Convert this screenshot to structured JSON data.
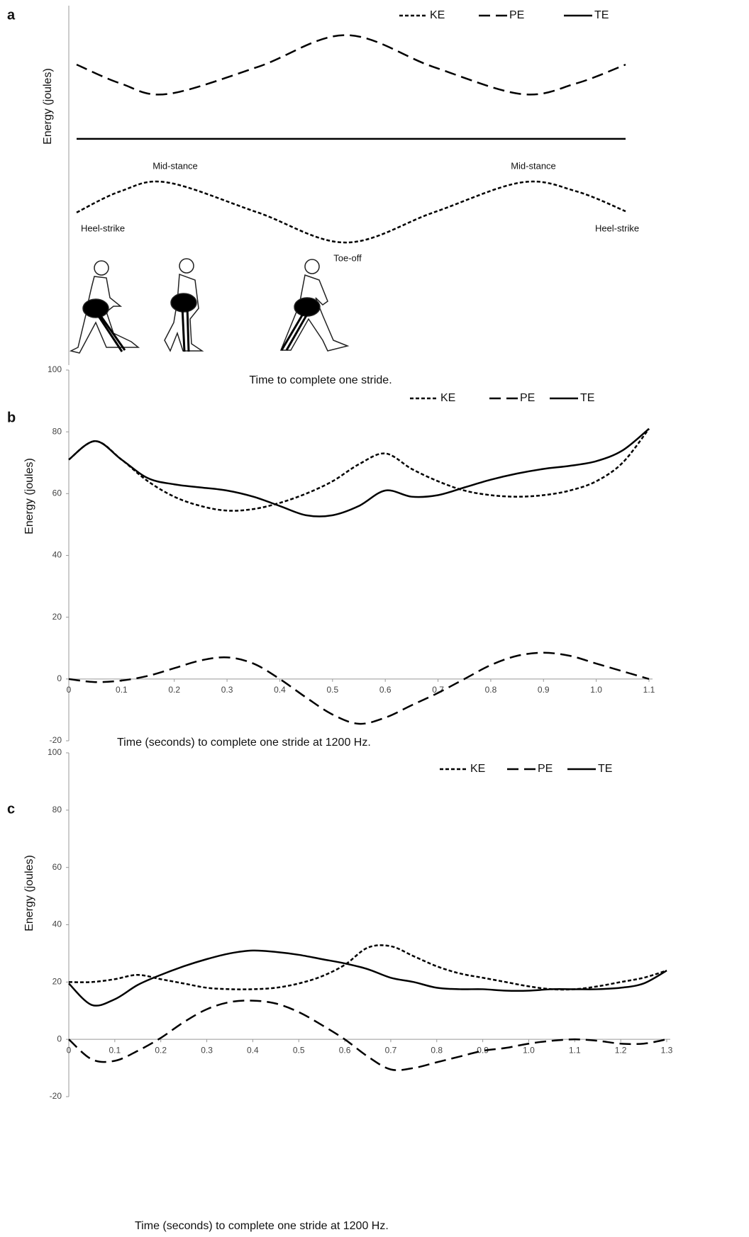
{
  "chart_data": [
    {
      "type": "line",
      "label": "a",
      "y_label": "Energy (joules)",
      "x_label": "Time to complete one stride.",
      "annotations": [
        "Mid-stance",
        "Mid-stance",
        "Heel-strike",
        "Heel-strike",
        "Toe-off"
      ],
      "xlim": [
        0,
        1
      ],
      "ylim": [
        0,
        6.1
      ],
      "x": [
        0,
        0.08,
        0.165,
        0.33,
        0.49,
        0.65,
        0.81,
        0.91,
        1
      ],
      "series": [
        {
          "name": "KE",
          "color": "#000000",
          "style": "dotted",
          "values": [
            2.59,
            2.95,
            3.1,
            2.59,
            2.08,
            2.59,
            3.1,
            2.95,
            2.61
          ]
        },
        {
          "name": "PE",
          "color": "#000000",
          "style": "dashed",
          "values": [
            5.1,
            4.78,
            4.6,
            5.06,
            5.6,
            5.06,
            4.6,
            4.78,
            5.1
          ]
        },
        {
          "name": "TE",
          "color": "#000000",
          "style": "solid",
          "values": [
            3.84,
            3.84,
            3.84,
            3.84,
            3.84,
            3.84,
            3.84,
            3.84,
            3.84
          ]
        }
      ]
    },
    {
      "type": "line",
      "label": "b",
      "y_label": "Energy (joules)",
      "x_label": "Time (seconds) to complete one stride at 1200 Hz.",
      "xlim": [
        0,
        1.1
      ],
      "ylim": [
        -20,
        100
      ],
      "xticks": [
        0,
        0.1,
        0.2,
        0.3,
        0.4,
        0.5,
        0.6,
        0.7,
        0.8,
        0.9,
        {
          "value": 1,
          "label": "1.0"
        },
        1.1
      ],
      "yticks": [
        -20,
        0,
        20,
        40,
        60,
        80,
        100
      ],
      "x": [
        0,
        0.05,
        0.1,
        0.15,
        0.2,
        0.25,
        0.3,
        0.35,
        0.4,
        0.45,
        0.5,
        0.55,
        0.6,
        0.65,
        0.7,
        0.75,
        0.8,
        0.85,
        0.9,
        0.95,
        1.0,
        1.05,
        1.1
      ],
      "series": [
        {
          "name": "KE",
          "color": "#000000",
          "style": "dotted",
          "values": [
            71,
            77,
            71,
            64,
            59,
            56,
            54.5,
            55,
            57,
            60,
            64,
            69.5,
            73,
            68,
            64,
            61,
            59.5,
            59,
            59.5,
            61,
            64,
            70,
            81
          ]
        },
        {
          "name": "PE",
          "color": "#000000",
          "style": "dashed",
          "values": [
            0,
            -1,
            -0.5,
            1,
            3.5,
            6,
            7,
            5,
            0,
            -6,
            -11.5,
            -14.5,
            -12.5,
            -8.5,
            -4.5,
            0,
            4.5,
            7.5,
            8.5,
            7.5,
            5,
            2.5,
            0
          ]
        },
        {
          "name": "TE",
          "color": "#000000",
          "style": "solid",
          "values": [
            71,
            77,
            71,
            65,
            63,
            62,
            61,
            59,
            56,
            53,
            53,
            56,
            61,
            59,
            59.5,
            62,
            64.5,
            66.5,
            68,
            69,
            70.5,
            74,
            81
          ]
        }
      ]
    },
    {
      "type": "line",
      "label": "c",
      "y_label": "Energy (joules)",
      "x_label": "Time (seconds) to complete one stride at 1200 Hz.",
      "xlim": [
        0,
        1.3
      ],
      "ylim": [
        -20,
        100
      ],
      "xticks": [
        0,
        0.1,
        0.2,
        0.3,
        0.4,
        0.5,
        0.6,
        0.7,
        0.8,
        0.9,
        {
          "value": 1,
          "label": "1.0"
        },
        1.1,
        1.2,
        1.3
      ],
      "yticks": [
        -20,
        0,
        20,
        40,
        60,
        80,
        100
      ],
      "x": [
        0,
        0.05,
        0.1,
        0.15,
        0.2,
        0.25,
        0.3,
        0.35,
        0.4,
        0.45,
        0.5,
        0.55,
        0.6,
        0.65,
        0.7,
        0.75,
        0.8,
        0.85,
        0.9,
        0.95,
        1.0,
        1.05,
        1.1,
        1.15,
        1.2,
        1.25,
        1.3
      ],
      "series": [
        {
          "name": "KE",
          "color": "#000000",
          "style": "dotted",
          "values": [
            20,
            20,
            21,
            22.5,
            21,
            19.5,
            18,
            17.5,
            17.5,
            18,
            19.5,
            22,
            26,
            32,
            32.5,
            29,
            25.5,
            23,
            21.5,
            20,
            18.5,
            17.5,
            17.5,
            18.5,
            20,
            21.5,
            24
          ]
        },
        {
          "name": "PE",
          "color": "#000000",
          "style": "dashed",
          "values": [
            0,
            -7,
            -7.5,
            -4,
            0.5,
            6,
            10.5,
            13,
            13.5,
            12.5,
            9.5,
            5,
            0,
            -6,
            -10.5,
            -10,
            -8,
            -6,
            -4,
            -3,
            -1.5,
            -0.5,
            0,
            -0.5,
            -1.5,
            -1.5,
            0
          ]
        },
        {
          "name": "TE",
          "color": "#000000",
          "style": "solid",
          "values": [
            19.5,
            12,
            14,
            19,
            22.5,
            25.5,
            28,
            30,
            31,
            30.5,
            29.5,
            28,
            26.5,
            24.5,
            21.5,
            20,
            18,
            17.5,
            17.5,
            17,
            17,
            17.5,
            17.5,
            17.5,
            18,
            19.5,
            24
          ]
        }
      ]
    }
  ]
}
